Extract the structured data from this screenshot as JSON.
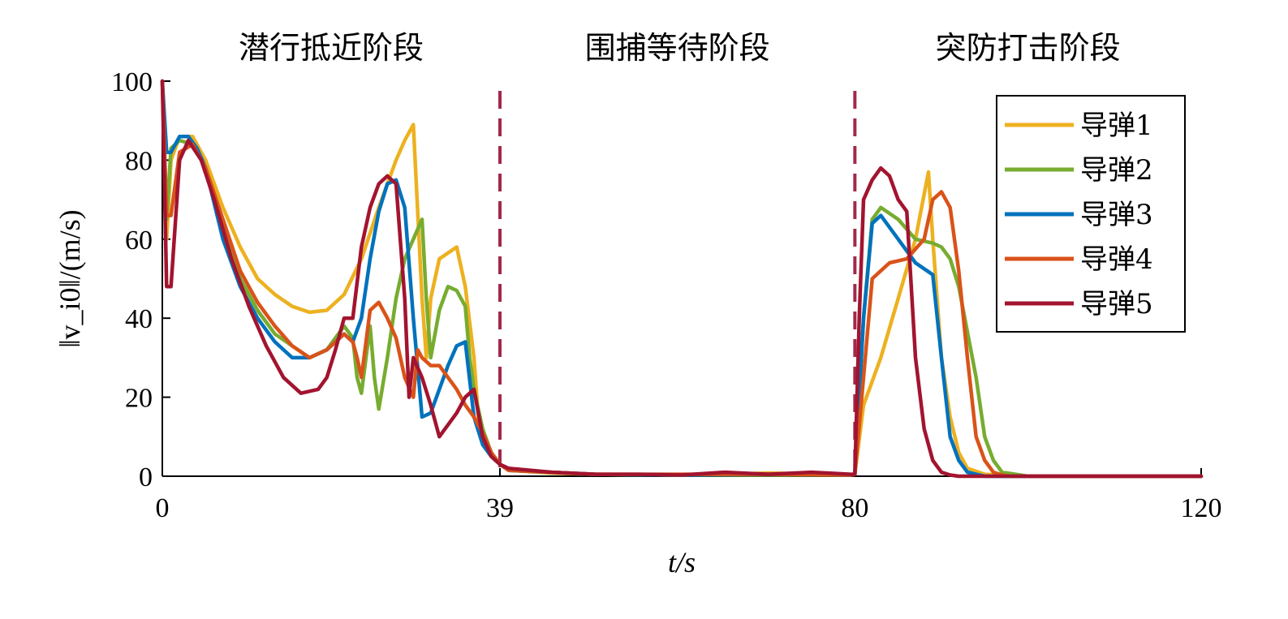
{
  "chart_data": {
    "type": "line",
    "xlabel": "t/s",
    "ylabel": "‖v_i0‖/(m/s)",
    "xlim": [
      0,
      120
    ],
    "ylim": [
      0,
      100
    ],
    "xticks": [
      0,
      39,
      80,
      120
    ],
    "yticks": [
      0,
      20,
      40,
      60,
      80,
      100
    ],
    "phase_dividers": [
      39,
      80
    ],
    "phases": [
      {
        "label": "潜行抵近阶段",
        "x_center": 19.5
      },
      {
        "label": "围捕等待阶段",
        "x_center": 59.5
      },
      {
        "label": "突防打击阶段",
        "x_center": 100
      }
    ],
    "legend_position": "top-right",
    "series": [
      {
        "name": "导弹1",
        "color": "#EDB120",
        "x": [
          0,
          0.5,
          1,
          2,
          3.5,
          5,
          7,
          9,
          11,
          13,
          15,
          17,
          19,
          21,
          23,
          25,
          27,
          28,
          29,
          30,
          30.5,
          31,
          32,
          34,
          35,
          36,
          36.5,
          37,
          38,
          39,
          40,
          45,
          50,
          55,
          60,
          65,
          70,
          75,
          79.5,
          80,
          81,
          83,
          85,
          87,
          88.5,
          89,
          90,
          91,
          92,
          93,
          95,
          100,
          110,
          120
        ],
        "y": [
          100,
          60,
          80,
          86,
          86,
          80,
          68,
          58,
          50,
          46,
          43,
          41.5,
          42,
          46,
          55,
          68,
          80,
          85,
          89,
          45,
          30,
          45,
          55,
          58,
          48,
          30,
          15,
          10,
          5,
          3,
          1.5,
          0.8,
          0.5,
          0.4,
          0.3,
          0.5,
          0.8,
          0.6,
          0.3,
          0.5,
          18,
          30,
          45,
          60,
          77,
          60,
          30,
          15,
          6,
          2,
          0.5,
          0,
          0,
          0
        ]
      },
      {
        "name": "导弹2",
        "color": "#77AC30",
        "x": [
          0,
          0.5,
          1,
          2,
          3.5,
          5,
          7,
          9,
          11,
          13,
          15,
          17,
          19,
          21,
          22,
          22.5,
          23,
          24,
          24.5,
          25,
          26,
          27,
          28,
          29,
          30,
          30.5,
          31,
          32,
          33,
          34,
          35,
          35.5,
          36,
          37,
          38,
          39,
          40,
          50,
          60,
          70,
          79.5,
          80,
          81,
          82,
          83,
          85,
          87,
          89,
          90,
          91,
          92,
          94,
          95,
          96,
          97,
          100,
          110,
          120
        ],
        "y": [
          100,
          65,
          83,
          85,
          84,
          78,
          62,
          50,
          42,
          36,
          33,
          30,
          32,
          38,
          35,
          25,
          21,
          38,
          25,
          17,
          30,
          45,
          55,
          60,
          65,
          45,
          30,
          42,
          48,
          47,
          43,
          30,
          22,
          12,
          6,
          3,
          1.5,
          0.5,
          0.3,
          0.3,
          0.3,
          0.5,
          40,
          65,
          68,
          65,
          60,
          59,
          58,
          55,
          48,
          25,
          10,
          4,
          1,
          0,
          0,
          0
        ]
      },
      {
        "name": "导弹3",
        "color": "#0072BD",
        "x": [
          0,
          0.5,
          1,
          2,
          3,
          4,
          5,
          7,
          9,
          11,
          13,
          15,
          17,
          19,
          21,
          22,
          23,
          24,
          25,
          26,
          27,
          28,
          29,
          30,
          31,
          32,
          33,
          34,
          35,
          36,
          37,
          38,
          39,
          40,
          50,
          60,
          70,
          79.5,
          80,
          81,
          82,
          83,
          85,
          87,
          89,
          90,
          91,
          92,
          93,
          94,
          95,
          97,
          100,
          110,
          120
        ],
        "y": [
          100,
          82,
          82,
          86,
          86,
          83,
          78,
          60,
          48,
          40,
          34,
          30,
          30,
          32,
          36,
          34,
          40,
          55,
          67,
          74,
          75,
          68,
          40,
          15,
          16,
          22,
          28,
          33,
          34,
          15,
          8,
          5,
          3,
          1.5,
          0.5,
          0.3,
          0.5,
          0.3,
          0.5,
          40,
          64,
          66,
          60,
          54,
          51,
          30,
          10,
          4,
          1,
          0.5,
          0,
          0,
          0,
          0,
          0
        ]
      },
      {
        "name": "导弹4",
        "color": "#D95319",
        "x": [
          0,
          0.5,
          1,
          2,
          3.5,
          5,
          7,
          9,
          11,
          13,
          15,
          17,
          19,
          21,
          22,
          22.5,
          23,
          24,
          25,
          26,
          27,
          28,
          29,
          29.5,
          30,
          31,
          32,
          33,
          34,
          35,
          36,
          37,
          38,
          39,
          40,
          50,
          60,
          70,
          79.5,
          80,
          81,
          82,
          84,
          86,
          88,
          89,
          90,
          91,
          92,
          93,
          94,
          95,
          96,
          97,
          98,
          100,
          110,
          120
        ],
        "y": [
          100,
          66,
          66,
          82,
          84,
          78,
          65,
          52,
          44,
          38,
          33,
          30,
          32,
          36,
          34,
          30,
          25,
          42,
          44,
          40,
          35,
          25,
          20,
          32,
          30,
          28,
          28,
          25,
          22,
          18,
          15,
          11,
          6,
          3,
          1.5,
          0.5,
          0.5,
          0.5,
          0.3,
          0.5,
          25,
          50,
          54,
          55,
          60,
          70,
          72,
          68,
          52,
          30,
          10,
          4,
          1,
          0.3,
          0,
          0,
          0,
          0
        ]
      },
      {
        "name": "导弹5",
        "color": "#A2142F",
        "x": [
          0,
          0.5,
          1,
          2,
          3,
          4.5,
          6,
          8,
          10,
          12,
          14,
          16,
          18,
          19,
          20,
          21,
          22,
          23,
          24,
          25,
          26,
          27,
          28,
          28.5,
          29,
          30,
          31,
          32,
          33,
          34,
          35,
          36,
          37,
          38,
          39,
          40,
          45,
          50,
          55,
          60,
          65,
          70,
          75,
          79.5,
          80,
          80.5,
          81,
          82,
          83,
          84,
          85,
          86,
          87,
          88,
          89,
          90,
          91,
          92,
          100,
          110,
          120
        ],
        "y": [
          100,
          48,
          48,
          80,
          85,
          80,
          70,
          55,
          43,
          33,
          25,
          21,
          22,
          25,
          32,
          40,
          40,
          58,
          68,
          74,
          76,
          74,
          45,
          20,
          30,
          25,
          18,
          10,
          13,
          16,
          20,
          22,
          10,
          5,
          3,
          2,
          1,
          0.5,
          0.5,
          0.3,
          1,
          0.5,
          1,
          0.5,
          0.5,
          40,
          70,
          75,
          78,
          76,
          70,
          67,
          30,
          12,
          4,
          1,
          0.3,
          0,
          0,
          0,
          0
        ]
      }
    ]
  }
}
